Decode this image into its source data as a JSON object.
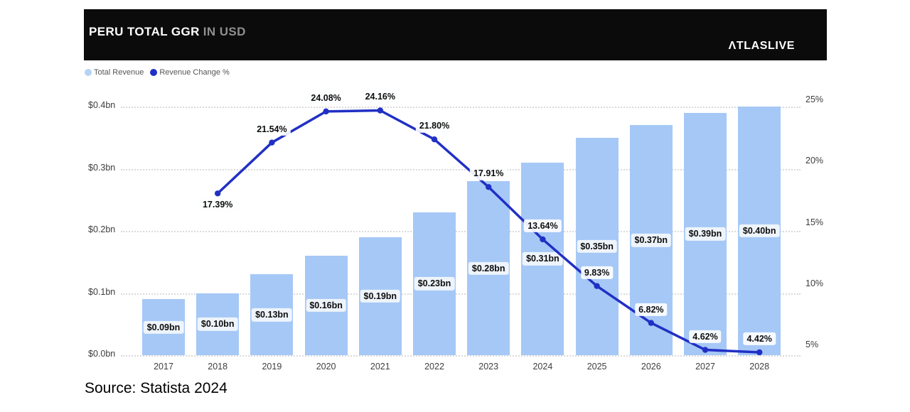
{
  "header": {
    "title": "PERU TOTAL GGR",
    "title_suffix": "IN USD",
    "brand": "ΛTLASLIVE",
    "background_color": "#0b0b0b"
  },
  "legend": [
    {
      "label": "Total Revenue",
      "color": "#b5d3f4"
    },
    {
      "label": "Revenue Change %",
      "color": "#2130c4"
    }
  ],
  "chart_data": {
    "type": "combo-bar-line",
    "title": "PERU TOTAL GGR IN USD",
    "categories": [
      "2017",
      "2018",
      "2019",
      "2020",
      "2021",
      "2022",
      "2023",
      "2024",
      "2025",
      "2026",
      "2027",
      "2028"
    ],
    "series": [
      {
        "name": "Total Revenue",
        "type": "bar",
        "unit": "USD billions",
        "color": "#a5c8f6",
        "values": [
          0.09,
          0.1,
          0.13,
          0.16,
          0.19,
          0.23,
          0.28,
          0.31,
          0.35,
          0.37,
          0.39,
          0.4
        ],
        "labels": [
          "$0.09bn",
          "$0.10bn",
          "$0.13bn",
          "$0.16bn",
          "$0.19bn",
          "$0.23bn",
          "$0.28bn",
          "$0.31bn",
          "$0.35bn",
          "$0.37bn",
          "$0.39bn",
          "$0.40bn"
        ]
      },
      {
        "name": "Revenue Change %",
        "type": "line",
        "unit": "%",
        "color": "#2130c4",
        "values": [
          null,
          17.39,
          21.54,
          24.08,
          24.16,
          21.8,
          17.91,
          13.64,
          9.83,
          6.82,
          4.62,
          4.42
        ],
        "labels": [
          null,
          "17.39%",
          "21.54%",
          "24.08%",
          "24.16%",
          "21.80%",
          "17.91%",
          "13.64%",
          "9.83%",
          "6.82%",
          "4.62%",
          "4.42%"
        ]
      }
    ],
    "left_axis": {
      "tick_labels": [
        "$0.0bn",
        "$0.1bn",
        "$0.2bn",
        "$0.3bn",
        "$0.4bn"
      ],
      "range": [
        0,
        0.4
      ]
    },
    "right_axis": {
      "tick_labels": [
        "5%",
        "10%",
        "15%",
        "20%",
        "25%"
      ],
      "tick_values": [
        5,
        10,
        15,
        20,
        25
      ],
      "range": [
        5,
        25
      ]
    },
    "grid": "horizontal-dotted",
    "legend_position": "top-left"
  },
  "source_caption": "Source: Statista 2024"
}
